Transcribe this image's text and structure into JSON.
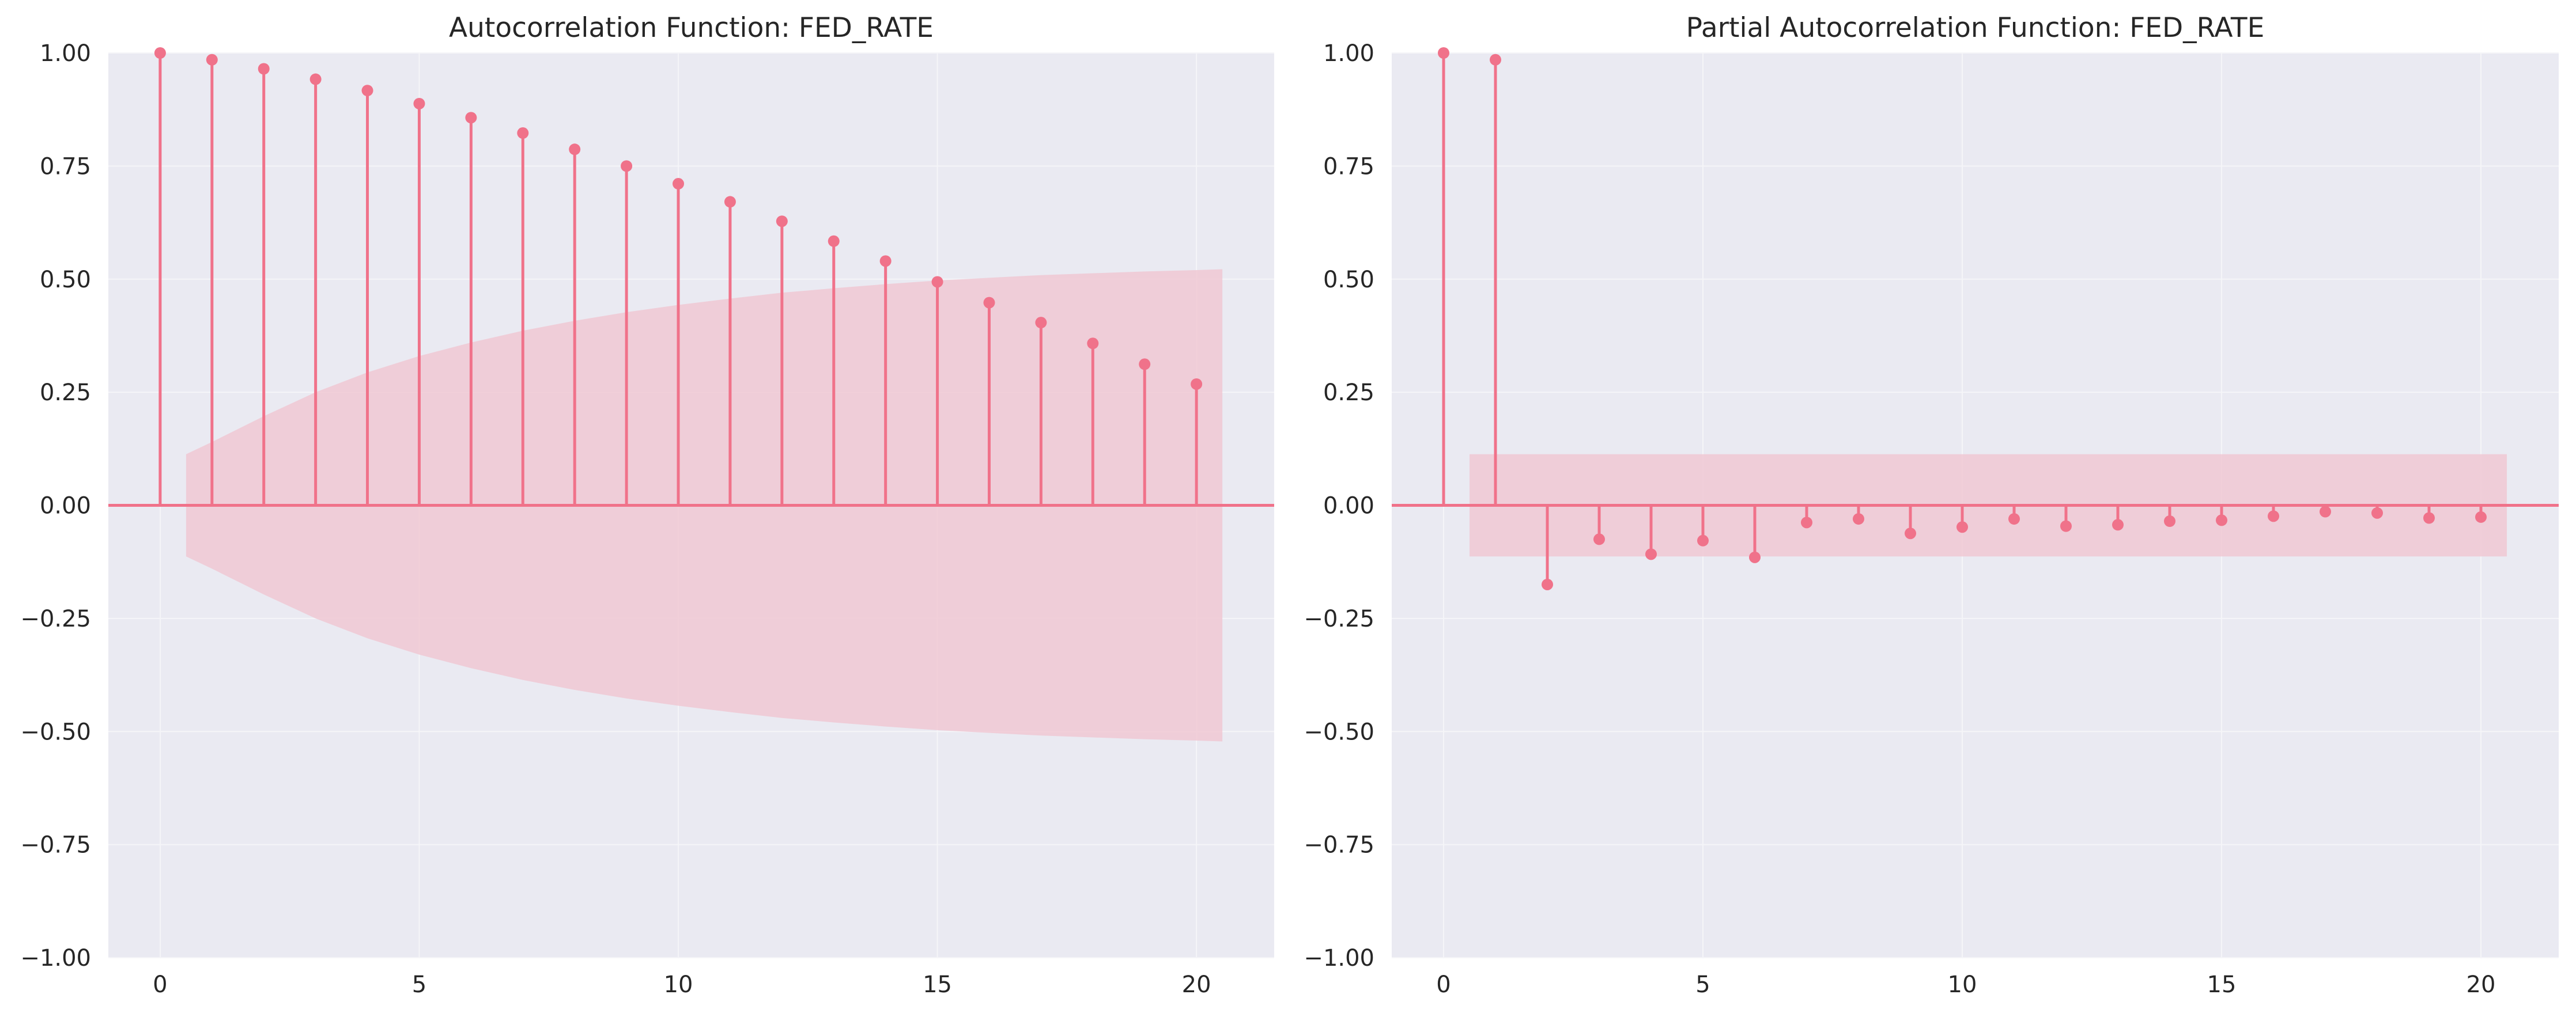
{
  "chart_data": [
    {
      "type": "stem",
      "title": "Autocorrelation Function: FED_RATE",
      "xlabel": "",
      "ylabel": "",
      "x": [
        0,
        1,
        2,
        3,
        4,
        5,
        6,
        7,
        8,
        9,
        10,
        11,
        12,
        13,
        14,
        15,
        16,
        17,
        18,
        19,
        20
      ],
      "series": [
        {
          "values": [
            1.0,
            0.985,
            0.965,
            0.942,
            0.917,
            0.888,
            0.857,
            0.823,
            0.787,
            0.75,
            0.711,
            0.671,
            0.628,
            0.584,
            0.54,
            0.494,
            0.448,
            0.404,
            0.358,
            0.312,
            0.268
          ]
        }
      ],
      "confidence_band": {
        "x": [
          0.5,
          1,
          2,
          3,
          4,
          5,
          6,
          7,
          8,
          9,
          10,
          11,
          12,
          13,
          14,
          15,
          16,
          17,
          18,
          19,
          20,
          20.5
        ],
        "upper": [
          0.113,
          0.14,
          0.197,
          0.25,
          0.294,
          0.33,
          0.36,
          0.386,
          0.408,
          0.427,
          0.443,
          0.457,
          0.47,
          0.48,
          0.489,
          0.497,
          0.503,
          0.509,
          0.513,
          0.517,
          0.52,
          0.522
        ]
      },
      "xlim": [
        -1,
        21.5
      ],
      "ylim": [
        -1.0,
        1.0
      ],
      "xticks": [
        0,
        5,
        10,
        15,
        20
      ],
      "yticks": [
        -1.0,
        -0.75,
        -0.5,
        -0.25,
        0.0,
        0.25,
        0.5,
        0.75,
        1.0
      ],
      "xtick_labels": [
        "0",
        "5",
        "10",
        "15",
        "20"
      ],
      "ytick_labels": [
        "−1.00",
        "−0.75",
        "−0.50",
        "−0.25",
        "0.00",
        "0.25",
        "0.50",
        "0.75",
        "1.00"
      ],
      "grid": true,
      "colors": {
        "stem": "#f0728a",
        "band": "#f0c8d4",
        "background": "#eaeaf2",
        "grid": "#f5f5f8"
      }
    },
    {
      "type": "stem",
      "title": "Partial Autocorrelation Function: FED_RATE",
      "xlabel": "",
      "ylabel": "",
      "x": [
        0,
        1,
        2,
        3,
        4,
        5,
        6,
        7,
        8,
        9,
        10,
        11,
        12,
        13,
        14,
        15,
        16,
        17,
        18,
        19,
        20
      ],
      "series": [
        {
          "values": [
            1.0,
            0.985,
            -0.175,
            -0.075,
            -0.108,
            -0.078,
            -0.115,
            -0.038,
            -0.03,
            -0.062,
            -0.048,
            -0.03,
            -0.046,
            -0.043,
            -0.035,
            -0.033,
            -0.024,
            -0.014,
            -0.017,
            -0.028,
            -0.026
          ]
        }
      ],
      "confidence_band": {
        "x": [
          0.5,
          20.5
        ],
        "upper": [
          0.113,
          0.113
        ]
      },
      "xlim": [
        -1,
        21.5
      ],
      "ylim": [
        -1.0,
        1.0
      ],
      "xticks": [
        0,
        5,
        10,
        15,
        20
      ],
      "yticks": [
        -1.0,
        -0.75,
        -0.5,
        -0.25,
        0.0,
        0.25,
        0.5,
        0.75,
        1.0
      ],
      "xtick_labels": [
        "0",
        "5",
        "10",
        "15",
        "20"
      ],
      "ytick_labels": [
        "−1.00",
        "−0.75",
        "−0.50",
        "−0.25",
        "0.00",
        "0.25",
        "0.50",
        "0.75",
        "1.00"
      ],
      "grid": true,
      "colors": {
        "stem": "#f0728a",
        "band": "#f0c8d4",
        "background": "#eaeaf2",
        "grid": "#f5f5f8"
      }
    }
  ]
}
